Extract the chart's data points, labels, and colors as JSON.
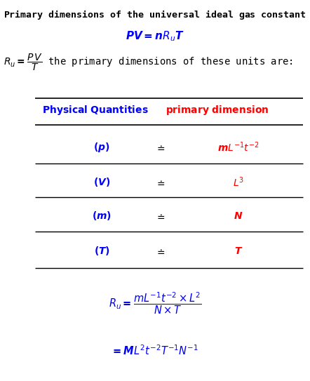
{
  "title_fontsize": 9.5,
  "title_color": "black",
  "eq1_fontsize": 11,
  "eq1_color": "blue",
  "eq2_fontsize": 10,
  "eq2_color": "black",
  "col_header_left_color": "blue",
  "col_header_right_color": "red",
  "col_header_fontsize": 10,
  "qty_color": "blue",
  "dim_color": "red",
  "row_fontsize": 10,
  "doteq_color": "black",
  "final_color": "blue",
  "final_fontsize": 10.5,
  "line_color": "black",
  "bg_color": "white"
}
